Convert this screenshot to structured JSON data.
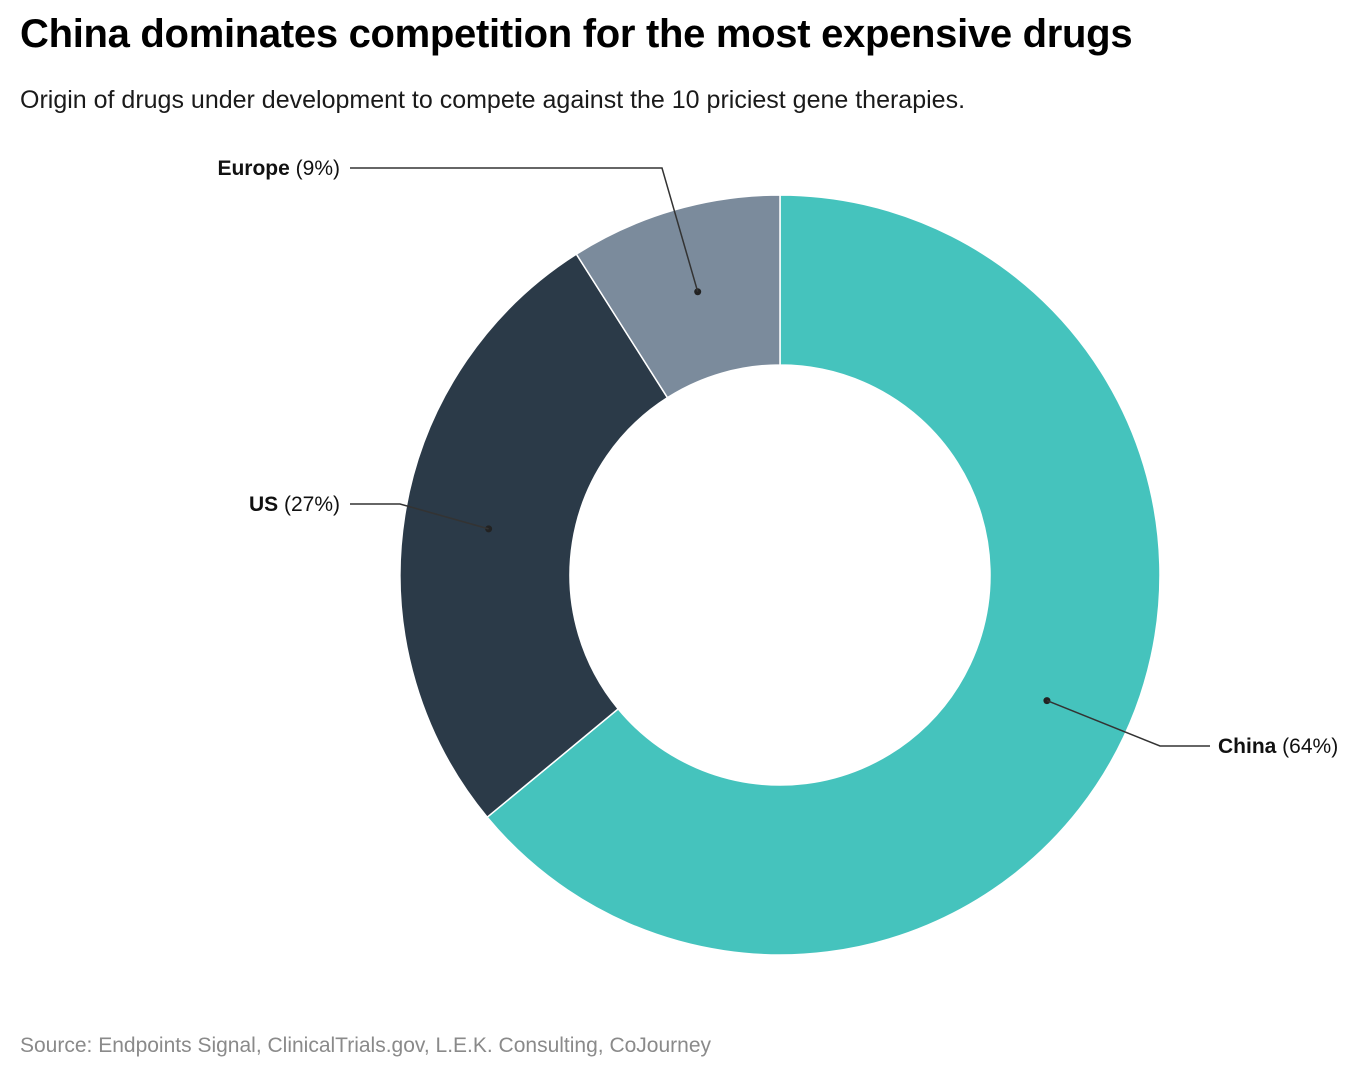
{
  "header": {
    "title": "China dominates competition for the most expensive drugs",
    "subtitle": "Origin of drugs under development to compete against the 10 priciest gene therapies."
  },
  "footer": {
    "source": "Source: Endpoints Signal, ClinicalTrials.gov, L.E.K. Consulting, CoJourney"
  },
  "chart_data": {
    "type": "pie",
    "variant": "donut",
    "title": "China dominates competition for the most expensive drugs",
    "subtitle": "Origin of drugs under development to compete against the 10 priciest gene therapies.",
    "unit": "%",
    "slices": [
      {
        "label": "China",
        "value": 64,
        "display": "(64%)",
        "color": "#45c3bd"
      },
      {
        "label": "US",
        "value": 27,
        "display": "(27%)",
        "color": "#2b3a48"
      },
      {
        "label": "Europe",
        "value": 9,
        "display": "(9%)",
        "color": "#7b8b9c"
      }
    ]
  }
}
